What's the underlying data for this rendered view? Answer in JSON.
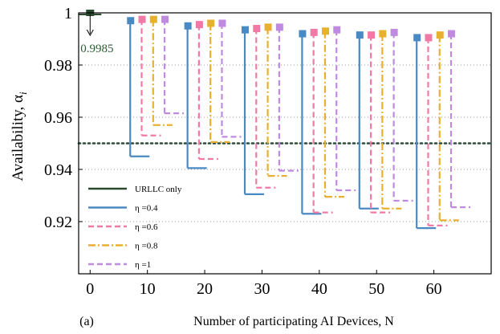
{
  "panel_label": "(a)",
  "chart_data": {
    "type": "errorbar",
    "xlabel": "Number of participating AI Devices, N",
    "ylabel": "Availability, α",
    "ylabel_subscript": "i",
    "xlim": [
      -2,
      70
    ],
    "ylim": [
      0.9,
      1.0
    ],
    "xticks": [
      0,
      10,
      20,
      30,
      40,
      50,
      60
    ],
    "yticks": [
      0.92,
      0.94,
      0.96,
      0.98,
      1
    ],
    "ytick_labels": [
      "0.92",
      "0.94",
      "0.96",
      "0.98",
      "1"
    ],
    "reference_line": {
      "y": 0.95,
      "style": "dotted",
      "color": "#2e4d3c"
    },
    "grid": "dotted horizontal",
    "annotation": {
      "text": "0.9985",
      "x": 0,
      "y": 0.9985,
      "color": "#2e5e35"
    },
    "legend": {
      "position": "bottom-left"
    },
    "series": [
      {
        "name": "URLLC only",
        "color": "#2a4a30",
        "style": "solid",
        "points": [
          {
            "x": 0,
            "top": 1.0,
            "bottom": 0.9985
          }
        ]
      },
      {
        "name": "η =0.4",
        "color": "#4a8ac4",
        "style": "solid",
        "points": [
          {
            "x": 7,
            "top": 0.997,
            "bottom": 0.945
          },
          {
            "x": 17,
            "top": 0.995,
            "bottom": 0.9405
          },
          {
            "x": 27,
            "top": 0.9935,
            "bottom": 0.9305
          },
          {
            "x": 37,
            "top": 0.992,
            "bottom": 0.923
          },
          {
            "x": 47,
            "top": 0.9915,
            "bottom": 0.925
          },
          {
            "x": 57,
            "top": 0.9905,
            "bottom": 0.9175
          }
        ]
      },
      {
        "name": "η =0.6",
        "color": "#f07aa6",
        "style": "dashed",
        "points": [
          {
            "x": 9,
            "top": 0.9975,
            "bottom": 0.953
          },
          {
            "x": 19,
            "top": 0.9955,
            "bottom": 0.944
          },
          {
            "x": 29,
            "top": 0.994,
            "bottom": 0.933
          },
          {
            "x": 39,
            "top": 0.9925,
            "bottom": 0.9235
          },
          {
            "x": 49,
            "top": 0.9915,
            "bottom": 0.9235
          },
          {
            "x": 59,
            "top": 0.9905,
            "bottom": 0.9185
          }
        ]
      },
      {
        "name": "η =0.8",
        "color": "#e8b030",
        "style": "dashdot",
        "points": [
          {
            "x": 11,
            "top": 0.9975,
            "bottom": 0.957
          },
          {
            "x": 21,
            "top": 0.996,
            "bottom": 0.9505
          },
          {
            "x": 31,
            "top": 0.9945,
            "bottom": 0.9375
          },
          {
            "x": 41,
            "top": 0.993,
            "bottom": 0.9295
          },
          {
            "x": 51,
            "top": 0.992,
            "bottom": 0.925
          },
          {
            "x": 61,
            "top": 0.9915,
            "bottom": 0.9205
          }
        ]
      },
      {
        "name": "η =1",
        "color": "#c08ae0",
        "style": "dashed",
        "points": [
          {
            "x": 13,
            "top": 0.9975,
            "bottom": 0.9615
          },
          {
            "x": 23,
            "top": 0.996,
            "bottom": 0.9525
          },
          {
            "x": 33,
            "top": 0.9945,
            "bottom": 0.9395
          },
          {
            "x": 43,
            "top": 0.9935,
            "bottom": 0.932
          },
          {
            "x": 53,
            "top": 0.9925,
            "bottom": 0.928
          },
          {
            "x": 63,
            "top": 0.992,
            "bottom": 0.9255
          }
        ]
      }
    ]
  }
}
